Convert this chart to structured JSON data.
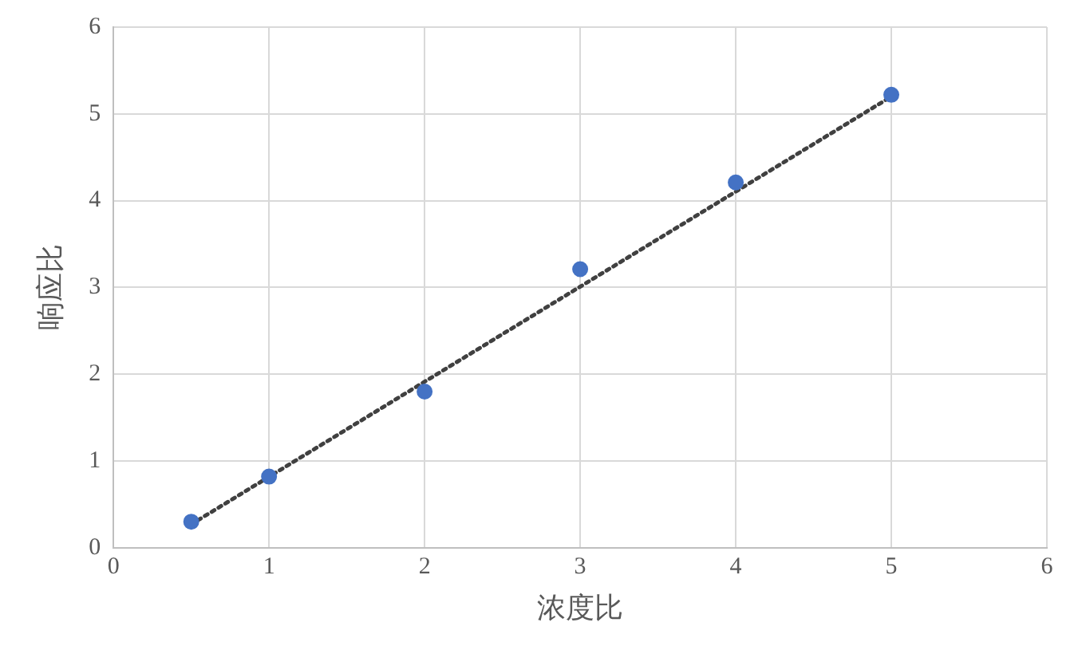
{
  "chart_data": {
    "type": "scatter",
    "xlabel": "浓度比",
    "ylabel": "响应比",
    "xlim": [
      0,
      6
    ],
    "ylim": [
      0,
      6
    ],
    "xticks": [
      0,
      1,
      2,
      3,
      4,
      5,
      6
    ],
    "yticks": [
      0,
      1,
      2,
      3,
      4,
      5,
      6
    ],
    "grid": true,
    "legend": false,
    "marker": "circle",
    "series": [
      {
        "color": "#4472c4",
        "x": [
          0.5,
          1,
          2,
          3,
          4,
          5
        ],
        "values": [
          0.3,
          0.82,
          1.8,
          3.21,
          4.21,
          5.22
        ]
      },
      {
        "type": "line",
        "color": "#404040",
        "line_style": "dotted",
        "marker": "none",
        "x": [
          0.5,
          5
        ],
        "values": [
          0.27,
          5.2
        ]
      }
    ]
  }
}
